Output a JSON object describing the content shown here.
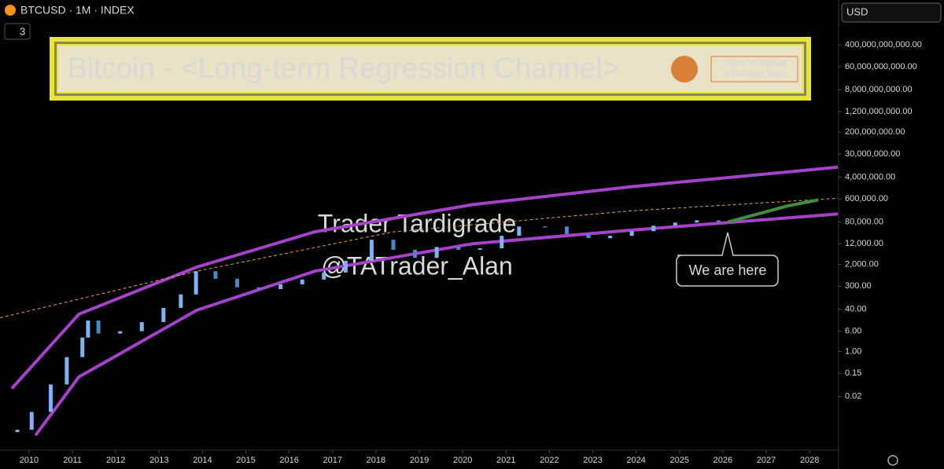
{
  "header": {
    "symbol": "BTCUSD · 1M · INDEX",
    "interval_badge": "3",
    "currency": "USD"
  },
  "banner": {
    "title": "Bitcoin - <Long-term Regression Channel>",
    "author": "Trader Tardigrade",
    "handle": "@TATrader_Alan"
  },
  "watermark": {
    "line1": "Trader Tardigrade",
    "line2": "@TATrader_Alan"
  },
  "callout": "We are here",
  "chart_data": {
    "type": "candlestick",
    "yscale": "log",
    "color": "#7fb2f0",
    "xlim": [
      2009.33,
      2028.65
    ],
    "xticks": [
      2010,
      2011,
      2012,
      2013,
      2014,
      2015,
      2016,
      2017,
      2018,
      2019,
      2020,
      2021,
      2022,
      2023,
      2024,
      2025,
      2026,
      2027,
      2028
    ],
    "ylim": [
      0.0002,
      20000000000000
    ],
    "yticks": [
      {
        "value": 0.02,
        "label": "0.02"
      },
      {
        "value": 0.15,
        "label": "0.15"
      },
      {
        "value": 1,
        "label": "1.00"
      },
      {
        "value": 6,
        "label": "6.00"
      },
      {
        "value": 40,
        "label": "40.00"
      },
      {
        "value": 300,
        "label": "300.00"
      },
      {
        "value": 2000,
        "label": "2,000.00"
      },
      {
        "value": 12000,
        "label": "12,000.00"
      },
      {
        "value": 80000,
        "label": "80,000.00"
      },
      {
        "value": 600000,
        "label": "600,000.00"
      },
      {
        "value": 4000000,
        "label": "4,000,000.00"
      },
      {
        "value": 30000000,
        "label": "30,000,000.00"
      },
      {
        "value": 200000000,
        "label": "200,000,000.00"
      },
      {
        "value": 1200000000,
        "label": "1,200,000,000.00"
      },
      {
        "value": 8000000000,
        "label": "8,000,000,000.00"
      },
      {
        "value": 60000000000,
        "label": "60,000,000,000.00"
      },
      {
        "value": 400000000000,
        "label": "400,000,000,000.00"
      }
    ],
    "x": [
      2009.73,
      2010.06,
      2010.5,
      2010.87,
      2011.23,
      2011.36,
      2011.6,
      2012.1,
      2012.6,
      2013.1,
      2013.5,
      2013.85,
      2014.3,
      2014.8,
      2015.3,
      2015.8,
      2016.3,
      2016.8,
      2017.3,
      2017.9,
      2018.4,
      2018.9,
      2019.4,
      2019.9,
      2020.4,
      2020.9,
      2021.3,
      2021.9,
      2022.4,
      2022.9,
      2023.4,
      2023.9,
      2024.4,
      2024.9,
      2025.4,
      2025.9
    ],
    "open": [
      0.0009,
      0.0011,
      0.0052,
      0.057,
      0.62,
      3.4,
      15,
      4.8,
      5.9,
      13,
      45,
      145,
      1100,
      570,
      270,
      230,
      350,
      530,
      980,
      2700,
      17000,
      7100,
      3500,
      9100,
      7100,
      8100,
      24000,
      54000,
      54000,
      28000,
      19500,
      24000,
      36000,
      58000,
      76000,
      93000
    ],
    "close": [
      0.0011,
      0.0052,
      0.057,
      0.62,
      3.4,
      15,
      4.8,
      5.9,
      13,
      45,
      145,
      1100,
      570,
      270,
      230,
      350,
      530,
      980,
      2700,
      17000,
      7100,
      3500,
      9100,
      7100,
      8100,
      24000,
      54000,
      54000,
      28000,
      19500,
      24000,
      36000,
      58000,
      76000,
      93000,
      81000
    ],
    "overlays": [
      {
        "color": "#a442c9",
        "dash": false,
        "x": [
          2009.6,
          2011.15,
          2013.87,
          2016.59,
          2020.22,
          2023.85,
          2028.65
        ],
        "values": [
          0.04,
          26,
          1580,
          34000,
          363000,
          1700000,
          9500000
        ]
      },
      {
        "color": "#a442c9",
        "dash": false,
        "x": [
          2010.15,
          2011.15,
          2013.87,
          2016.59,
          2020.22,
          2023.85,
          2028.65
        ],
        "values": [
          0.00068,
          0.11,
          37,
          1100,
          12000,
          39000,
          160000
        ]
      },
      {
        "color": "#e0a050",
        "dash": true,
        "x": [
          2009.33,
          2013.87,
          2018.4,
          2023.85,
          2028.65
        ],
        "values": [
          19,
          1100,
          34000,
          210000,
          630000
        ]
      },
      {
        "color": "#3f8f3f",
        "dash": false,
        "x": [
          2026.12,
          2027.48,
          2028.2
        ],
        "values": [
          80000,
          320000,
          550000
        ]
      }
    ]
  }
}
